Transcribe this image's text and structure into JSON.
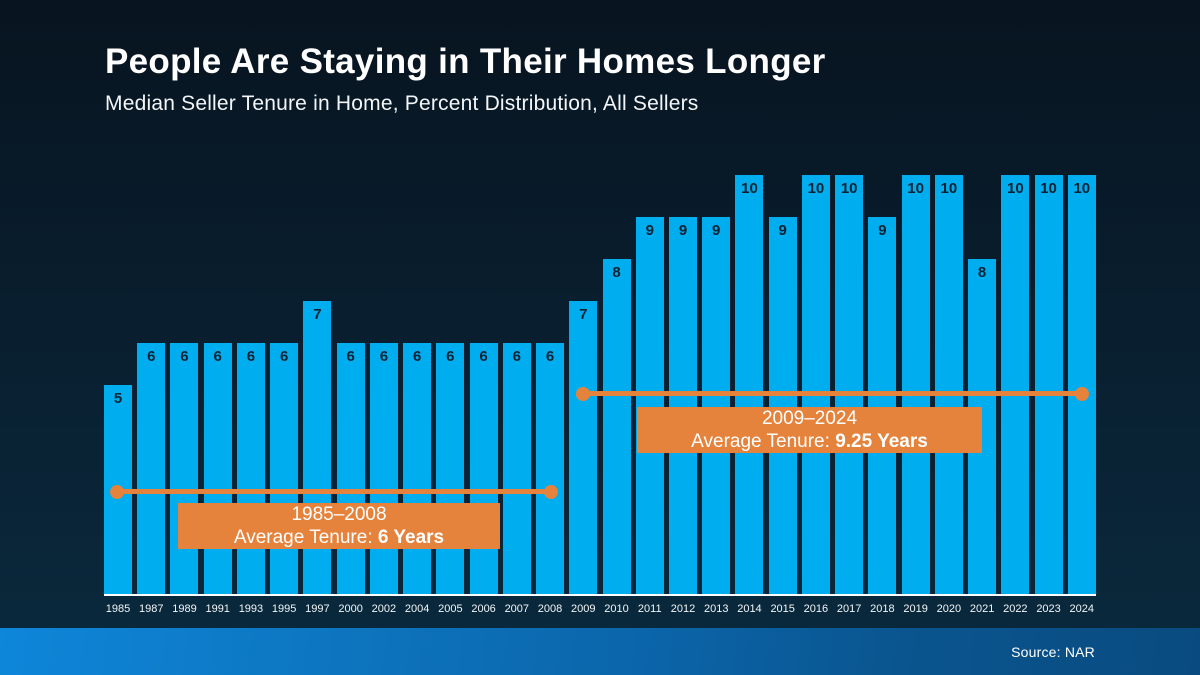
{
  "header": {
    "title": "People Are Staying in Their Homes Longer",
    "subtitle": "Median Seller Tenure in Home, Percent Distribution, All Sellers"
  },
  "chart_data": {
    "type": "bar",
    "title": "People Are Staying in Their Homes Longer",
    "subtitle": "Median Seller Tenure in Home, Percent Distribution, All Sellers",
    "categories": [
      "1985",
      "1987",
      "1989",
      "1991",
      "1993",
      "1995",
      "1997",
      "2000",
      "2002",
      "2004",
      "2005",
      "2006",
      "2007",
      "2008",
      "2009",
      "2010",
      "2011",
      "2012",
      "2013",
      "2014",
      "2015",
      "2016",
      "2017",
      "2018",
      "2019",
      "2020",
      "2021",
      "2022",
      "2023",
      "2024"
    ],
    "values": [
      5,
      6,
      6,
      6,
      6,
      6,
      7,
      6,
      6,
      6,
      6,
      6,
      6,
      6,
      7,
      8,
      9,
      9,
      9,
      10,
      9,
      10,
      10,
      9,
      10,
      10,
      8,
      10,
      10,
      10
    ],
    "xlabel": "",
    "ylabel": "",
    "ylim": [
      0,
      10
    ],
    "grid": false,
    "legend": false,
    "bar_value_labels_shown": true,
    "annotations": [
      {
        "range_label": "1985–2008",
        "stat_prefix": "Average Tenure: ",
        "stat_bold": "6 Years",
        "span_start": "1985",
        "span_end": "2008"
      },
      {
        "range_label": "2009–2024",
        "stat_prefix": "Average Tenure: ",
        "stat_bold": "9.25 Years",
        "span_start": "2009",
        "span_end": "2024"
      }
    ]
  },
  "footer": {
    "source": "Source: NAR"
  },
  "colors": {
    "bar": "#00ADEF",
    "bar_label": "#0B2233",
    "accent": "#E5833C",
    "bg_top": "#081420",
    "bg_mid": "#092031",
    "bg_bottom": "#0A2A3E"
  }
}
